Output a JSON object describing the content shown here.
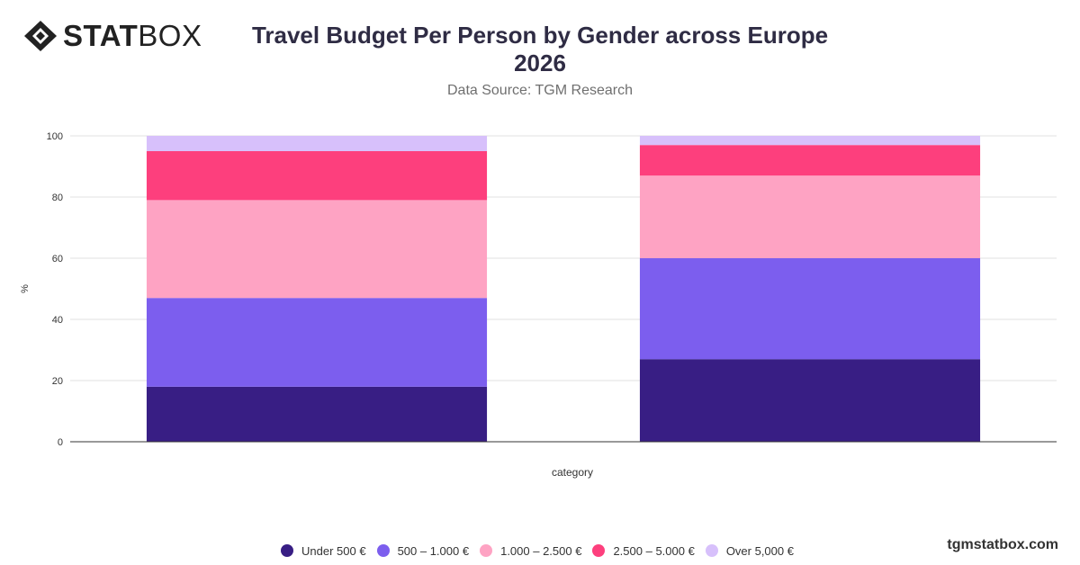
{
  "brand": {
    "logo_bold": "STAT",
    "logo_thin": "BOX",
    "url": "tgmstatbox.com"
  },
  "header": {
    "title_line1": "Travel Budget Per Person by Gender across Europe",
    "title_line2": "2026",
    "subtitle": "Data Source: TGM Research"
  },
  "chart_data": {
    "type": "bar",
    "stacked": true,
    "categories": [
      "",
      ""
    ],
    "xlabel": "category",
    "ylabel": "%",
    "ylim": [
      0,
      100
    ],
    "yticks": [
      0,
      20,
      40,
      60,
      80,
      100
    ],
    "grid": true,
    "legend_position": "bottom",
    "series": [
      {
        "name": "Under 500 €",
        "color": "#381e84",
        "values": [
          18,
          27
        ]
      },
      {
        "name": "500 – 1.000 €",
        "color": "#7c5eee",
        "values": [
          29,
          33
        ]
      },
      {
        "name": "1.000 – 2.500 €",
        "color": "#fea3c3",
        "values": [
          32,
          27
        ]
      },
      {
        "name": "2.500 – 5.000 €",
        "color": "#fd3f7d",
        "values": [
          16,
          10
        ]
      },
      {
        "name": "Over 5,000 €",
        "color": "#d7c0fb",
        "values": [
          5,
          3
        ]
      }
    ]
  }
}
